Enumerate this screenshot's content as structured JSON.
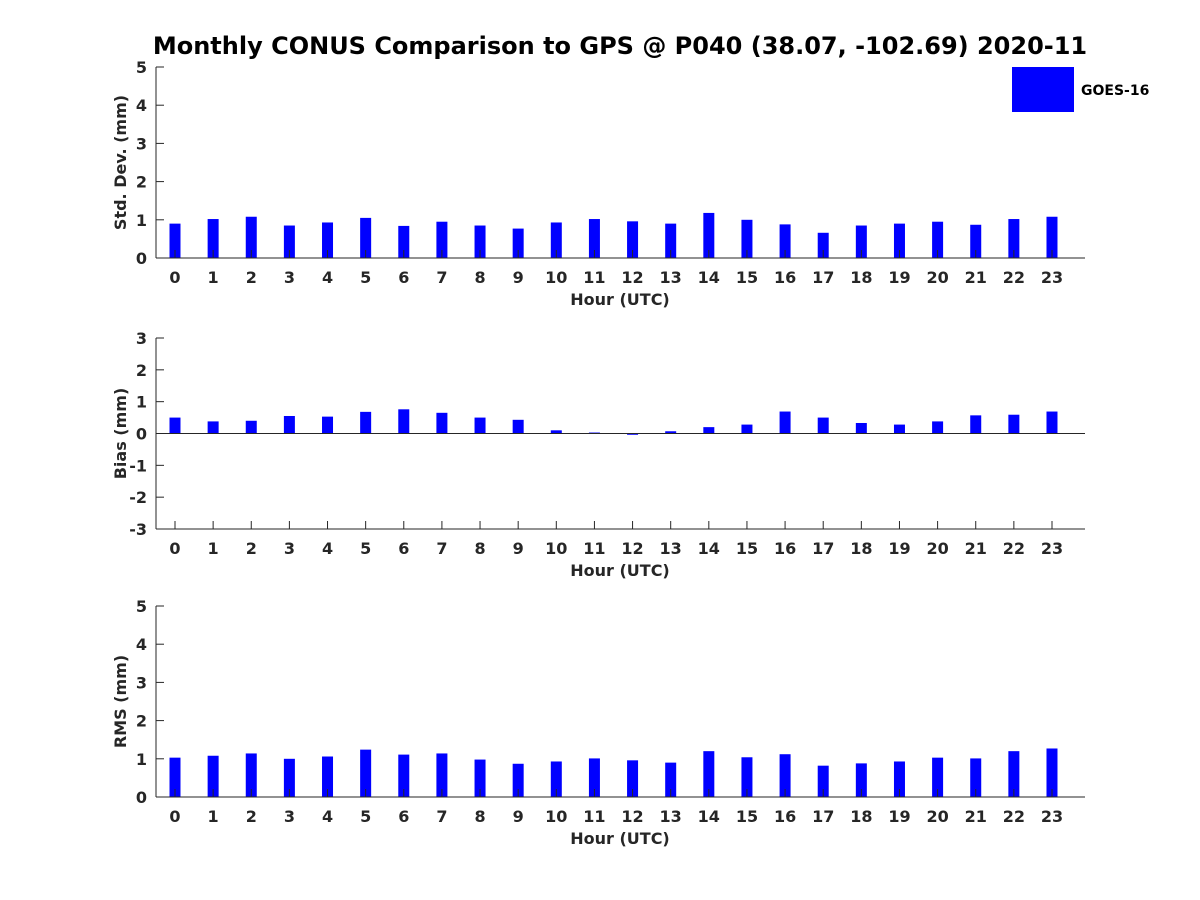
{
  "figure": {
    "title": "Monthly CONUS Comparison to GPS @ P040 (38.07, -102.69) 2020-11",
    "legend_label": "GOES-16",
    "bar_color": "#0000ff",
    "axis_color": "#262626"
  },
  "chart_data": [
    {
      "type": "bar",
      "title": "Monthly CONUS Comparison to GPS @ P040 (38.07, -102.69) 2020-11",
      "xlabel": "Hour (UTC)",
      "ylabel": "Std. Dev. (mm)",
      "ylim": [
        0,
        5
      ],
      "yticks": [
        "0",
        "1",
        "2",
        "3",
        "4",
        "5"
      ],
      "categories": [
        "0",
        "1",
        "2",
        "3",
        "4",
        "5",
        "6",
        "7",
        "8",
        "9",
        "10",
        "11",
        "12",
        "13",
        "14",
        "15",
        "16",
        "17",
        "18",
        "19",
        "20",
        "21",
        "22",
        "23"
      ],
      "series": [
        {
          "name": "GOES-16",
          "values": [
            0.9,
            1.02,
            1.08,
            0.85,
            0.93,
            1.05,
            0.84,
            0.95,
            0.85,
            0.77,
            0.93,
            1.02,
            0.96,
            0.9,
            1.18,
            1.0,
            0.88,
            0.66,
            0.85,
            0.9,
            0.95,
            0.87,
            1.02,
            1.08
          ]
        }
      ],
      "legend": {
        "entries": [
          "GOES-16"
        ],
        "position": "top-right"
      },
      "grid": false
    },
    {
      "type": "bar",
      "xlabel": "Hour (UTC)",
      "ylabel": "Bias (mm)",
      "ylim": [
        -3,
        3
      ],
      "yticks": [
        "-3",
        "-2",
        "-1",
        "0",
        "1",
        "2",
        "3"
      ],
      "categories": [
        "0",
        "1",
        "2",
        "3",
        "4",
        "5",
        "6",
        "7",
        "8",
        "9",
        "10",
        "11",
        "12",
        "13",
        "14",
        "15",
        "16",
        "17",
        "18",
        "19",
        "20",
        "21",
        "22",
        "23"
      ],
      "series": [
        {
          "name": "GOES-16",
          "values": [
            0.5,
            0.38,
            0.4,
            0.55,
            0.53,
            0.68,
            0.76,
            0.65,
            0.5,
            0.43,
            0.1,
            0.03,
            -0.04,
            0.07,
            0.2,
            0.28,
            0.69,
            0.5,
            0.33,
            0.28,
            0.38,
            0.57,
            0.59,
            0.69
          ]
        }
      ],
      "grid": false
    },
    {
      "type": "bar",
      "xlabel": "Hour (UTC)",
      "ylabel": "RMS (mm)",
      "ylim": [
        0,
        5
      ],
      "yticks": [
        "0",
        "1",
        "2",
        "3",
        "4",
        "5"
      ],
      "categories": [
        "0",
        "1",
        "2",
        "3",
        "4",
        "5",
        "6",
        "7",
        "8",
        "9",
        "10",
        "11",
        "12",
        "13",
        "14",
        "15",
        "16",
        "17",
        "18",
        "19",
        "20",
        "21",
        "22",
        "23"
      ],
      "series": [
        {
          "name": "GOES-16",
          "values": [
            1.03,
            1.08,
            1.14,
            1.0,
            1.06,
            1.24,
            1.11,
            1.14,
            0.98,
            0.87,
            0.93,
            1.01,
            0.96,
            0.9,
            1.2,
            1.04,
            1.12,
            0.82,
            0.88,
            0.93,
            1.03,
            1.01,
            1.2,
            1.27
          ]
        }
      ],
      "grid": false
    }
  ]
}
